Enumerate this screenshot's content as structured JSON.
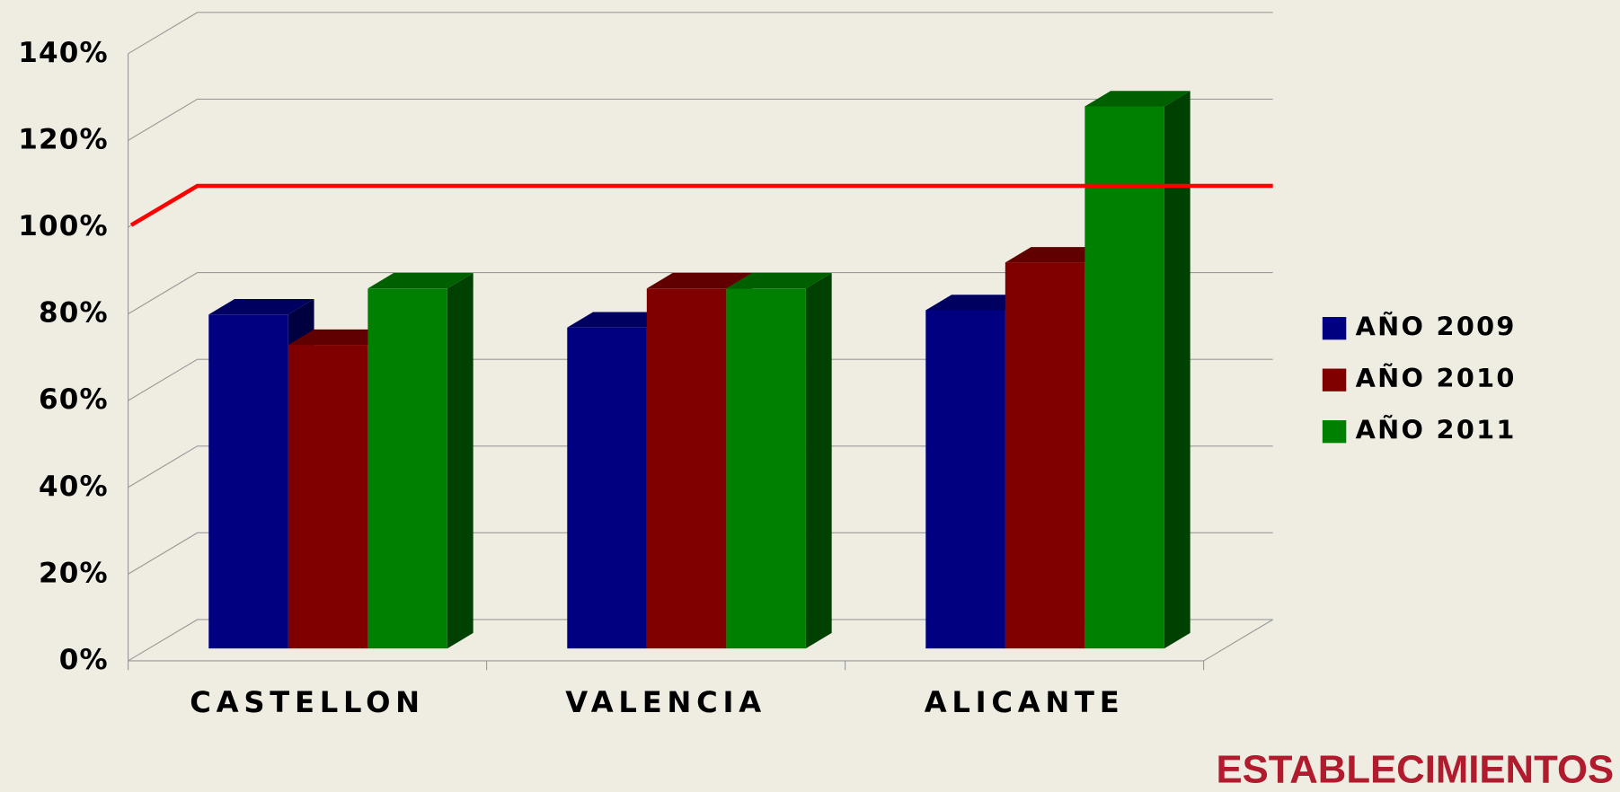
{
  "chart_data": {
    "type": "bar3d",
    "categories": [
      "CASTELLON",
      "VALENCIA",
      "ALICANTE"
    ],
    "series": [
      {
        "name": "AÑO 2009",
        "color": "#000080",
        "values": [
          77,
          74,
          78
        ]
      },
      {
        "name": "AÑO 2010",
        "color": "#800000",
        "values": [
          70,
          83,
          89
        ]
      },
      {
        "name": "AÑO 2011",
        "color": "#008000",
        "values": [
          83,
          83,
          125
        ]
      }
    ],
    "reference_line": {
      "value": 100,
      "color": "#ff0000"
    },
    "ylim": [
      0,
      140
    ],
    "yticks": [
      {
        "value": 0,
        "label": "0%"
      },
      {
        "value": 20,
        "label": "20%"
      },
      {
        "value": 40,
        "label": "40%"
      },
      {
        "value": 60,
        "label": "60%"
      },
      {
        "value": 80,
        "label": "80%"
      },
      {
        "value": 100,
        "label": "100%"
      },
      {
        "value": 120,
        "label": "120%"
      },
      {
        "value": 140,
        "label": "140%"
      }
    ],
    "grid": true,
    "legend": "right",
    "footer": "ESTABLECIMIENTOS"
  }
}
